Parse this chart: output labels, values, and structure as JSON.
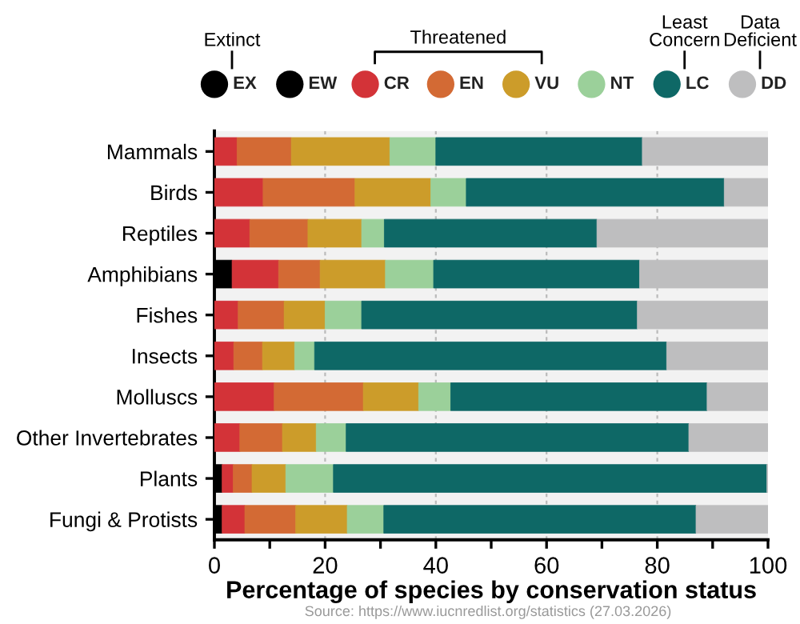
{
  "chart_data": {
    "type": "bar",
    "orientation": "horizontal",
    "stacked": true,
    "categories": [
      "Mammals",
      "Birds",
      "Reptiles",
      "Amphibians",
      "Fishes",
      "Insects",
      "Molluscs",
      "Other Invertebrates",
      "Plants",
      "Fungi & Protists"
    ],
    "series": [
      {
        "name": "EX",
        "color": "#000000",
        "values": [
          0,
          0,
          0,
          3.2,
          0,
          0,
          0,
          0,
          1.4,
          1.4
        ]
      },
      {
        "name": "EW",
        "color": "#000000",
        "values": [
          0,
          0,
          0,
          0,
          0,
          0,
          0,
          0,
          0,
          0
        ]
      },
      {
        "name": "CR",
        "color": "#d33338",
        "values": [
          4.1,
          8.8,
          6.4,
          8.4,
          4.3,
          3.5,
          10.8,
          4.6,
          2.0,
          4.1
        ]
      },
      {
        "name": "EN",
        "color": "#d36a34",
        "values": [
          9.8,
          16.6,
          10.5,
          7.5,
          8.3,
          5.2,
          16.1,
          7.7,
          3.4,
          9.2
        ]
      },
      {
        "name": "VU",
        "color": "#cc9c2a",
        "values": [
          17.8,
          13.7,
          9.7,
          11.8,
          7.4,
          5.8,
          10.0,
          6.1,
          6.1,
          9.3
        ]
      },
      {
        "name": "NT",
        "color": "#9bd09a",
        "values": [
          8.3,
          6.4,
          4.1,
          8.7,
          6.6,
          3.6,
          5.8,
          5.4,
          8.6,
          6.6
        ]
      },
      {
        "name": "LC",
        "color": "#0e6866",
        "values": [
          37.3,
          46.6,
          38.4,
          37.2,
          49.8,
          63.6,
          46.3,
          61.9,
          78.3,
          56.4
        ]
      },
      {
        "name": "DD",
        "color": "#bebebf",
        "values": [
          22.8,
          8.2,
          31.0,
          23.5,
          23.8,
          18.6,
          11.2,
          14.5,
          0.4,
          13.1
        ]
      }
    ],
    "xlabel": "Percentage of species by conservation status",
    "xlim": [
      0,
      100
    ],
    "xticks": [
      0,
      {
        "value": 10,
        "label": null
      },
      20,
      {
        "value": 30,
        "label": null
      },
      40,
      {
        "value": 50,
        "label": null
      },
      60,
      {
        "value": 70,
        "label": null
      },
      80,
      {
        "value": 90,
        "label": null
      },
      100
    ],
    "grid": "x",
    "legend": "top",
    "annotations": [
      "Extinct",
      "Threatened",
      "Least\nConcern",
      "Data\nDeficient",
      "Source: https://www.iucnredlist.org/statistics (27.03.2026)"
    ]
  }
}
